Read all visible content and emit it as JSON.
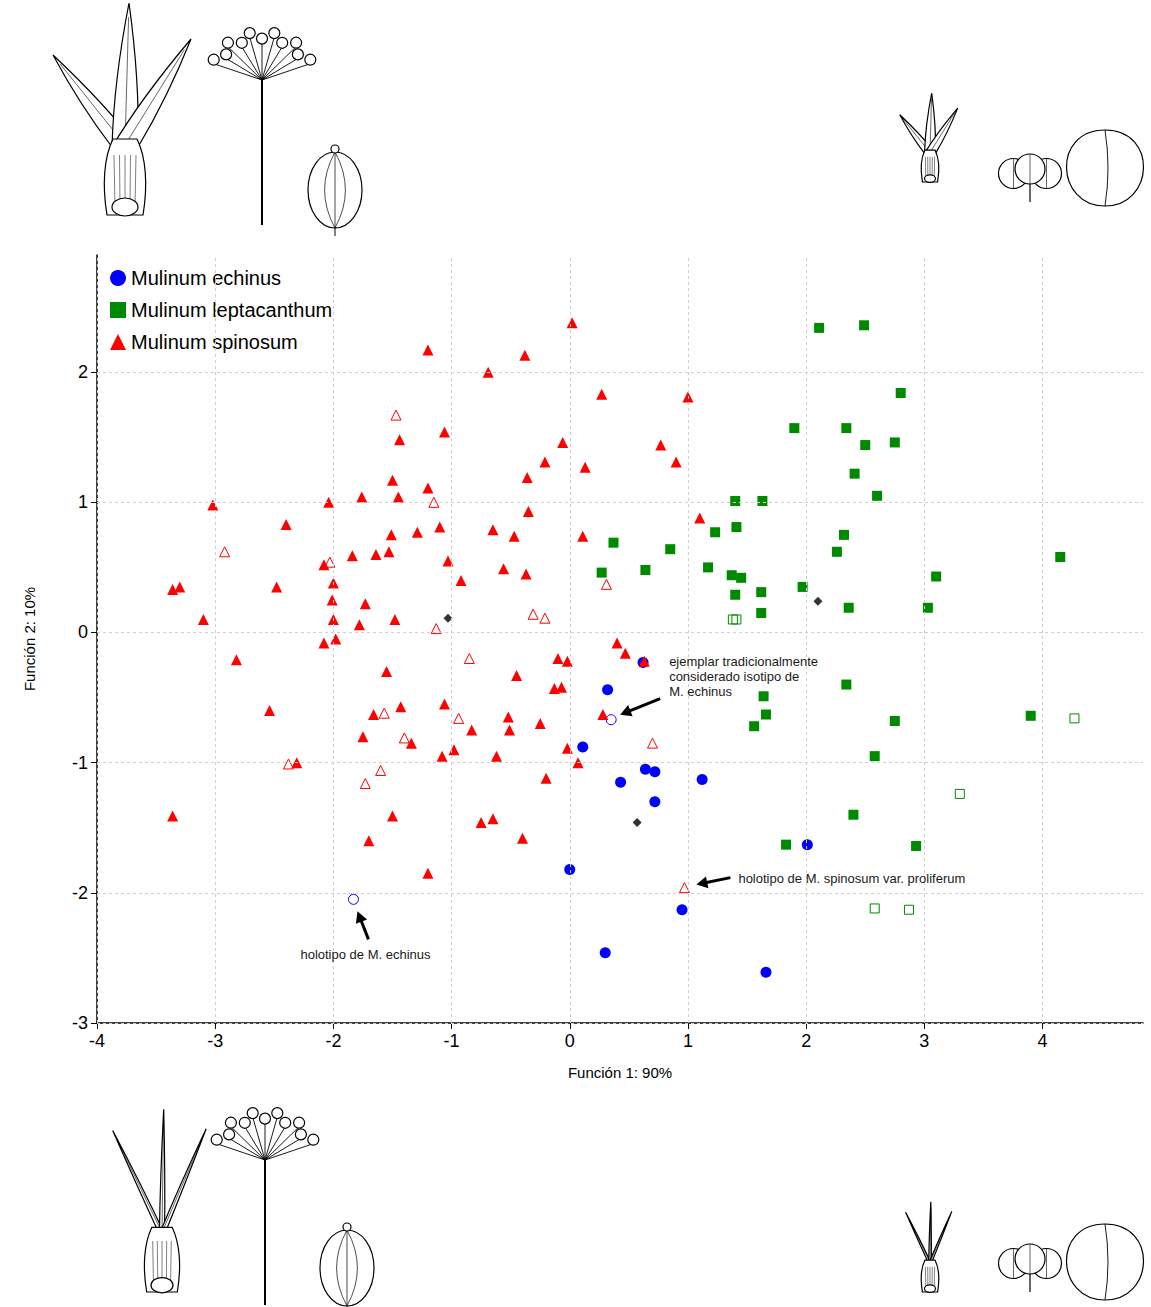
{
  "chart_data": {
    "type": "scatter",
    "x_label": "Función 1: 90%",
    "y_label": "Función 2: 10%",
    "xlim": [
      -4,
      4.85
    ],
    "ylim": [
      -3,
      2.9
    ],
    "xticks": [
      -4,
      -3,
      -2,
      -1,
      0,
      1,
      2,
      3,
      4
    ],
    "yticks": [
      -3,
      -2,
      -1,
      0,
      1,
      2
    ],
    "grid": true,
    "legend": "upper left",
    "series": [
      {
        "name": "Mulinum echinus",
        "color": "#0000ff",
        "marker": "circle",
        "values": [
          [
            0.62,
            -0.23
          ],
          [
            0.32,
            -0.44
          ],
          [
            0.11,
            -0.88
          ],
          [
            0.43,
            -1.15
          ],
          [
            0.64,
            -1.05
          ],
          [
            0.72,
            -1.07
          ],
          [
            0.72,
            -1.3
          ],
          [
            1.12,
            -1.13
          ],
          [
            0.0,
            -1.82
          ],
          [
            0.95,
            -2.13
          ],
          [
            0.3,
            -2.46
          ],
          [
            1.66,
            -2.61
          ],
          [
            2.01,
            -1.63
          ]
        ],
        "open_values": [
          [
            0.35,
            -0.67
          ],
          [
            -1.83,
            -2.05
          ]
        ]
      },
      {
        "name": "Mulinum leptacanthum",
        "color": "#008a00",
        "marker": "square",
        "values": [
          [
            2.11,
            2.34
          ],
          [
            2.49,
            2.36
          ],
          [
            2.8,
            1.84
          ],
          [
            1.9,
            1.57
          ],
          [
            2.34,
            1.57
          ],
          [
            2.5,
            1.44
          ],
          [
            2.75,
            1.46
          ],
          [
            2.41,
            1.22
          ],
          [
            2.6,
            1.05
          ],
          [
            1.4,
            1.01
          ],
          [
            1.63,
            1.01
          ],
          [
            1.41,
            0.81
          ],
          [
            1.23,
            0.77
          ],
          [
            2.32,
            0.75
          ],
          [
            0.85,
            0.64
          ],
          [
            2.26,
            0.62
          ],
          [
            0.37,
            0.69
          ],
          [
            0.64,
            0.48
          ],
          [
            0.27,
            0.46
          ],
          [
            1.17,
            0.5
          ],
          [
            1.37,
            0.44
          ],
          [
            1.45,
            0.42
          ],
          [
            1.4,
            0.29
          ],
          [
            1.62,
            0.31
          ],
          [
            1.97,
            0.35
          ],
          [
            1.62,
            0.15
          ],
          [
            2.36,
            0.19
          ],
          [
            3.03,
            0.19
          ],
          [
            3.1,
            0.43
          ],
          [
            4.15,
            0.58
          ],
          [
            1.64,
            -0.49
          ],
          [
            1.66,
            -0.63
          ],
          [
            1.56,
            -0.72
          ],
          [
            2.34,
            -0.4
          ],
          [
            2.75,
            -0.68
          ],
          [
            3.9,
            -0.64
          ],
          [
            2.58,
            -0.95
          ],
          [
            2.4,
            -1.4
          ],
          [
            1.83,
            -1.63
          ],
          [
            2.93,
            -1.64
          ]
        ],
        "open_values": [
          [
            1.38,
            0.1
          ],
          [
            1.41,
            0.1
          ],
          [
            4.27,
            -0.66
          ],
          [
            3.3,
            -1.24
          ],
          [
            2.58,
            -2.12
          ],
          [
            2.87,
            -2.13
          ]
        ]
      },
      {
        "name": "Mulinum spinosum",
        "color": "#ff0000",
        "marker": "triangle",
        "values": [
          [
            0.02,
            2.38
          ],
          [
            -1.2,
            2.17
          ],
          [
            -0.69,
            2.0
          ],
          [
            -0.38,
            2.13
          ],
          [
            1.0,
            1.81
          ],
          [
            0.27,
            1.83
          ],
          [
            -1.06,
            1.54
          ],
          [
            -0.06,
            1.46
          ],
          [
            0.77,
            1.44
          ],
          [
            -0.21,
            1.31
          ],
          [
            0.9,
            1.31
          ],
          [
            0.13,
            1.27
          ],
          [
            -1.44,
            1.48
          ],
          [
            -1.5,
            1.17
          ],
          [
            -0.36,
            1.19
          ],
          [
            -1.2,
            1.11
          ],
          [
            -3.02,
            0.98
          ],
          [
            -2.04,
            1.0
          ],
          [
            -1.76,
            1.04
          ],
          [
            -1.45,
            1.04
          ],
          [
            -1.1,
            0.81
          ],
          [
            -0.65,
            0.79
          ],
          [
            -0.35,
            0.93
          ],
          [
            1.1,
            0.88
          ],
          [
            -2.4,
            0.83
          ],
          [
            -1.29,
            0.77
          ],
          [
            -0.47,
            0.74
          ],
          [
            0.11,
            0.74
          ],
          [
            -2.08,
            0.52
          ],
          [
            -2.0,
            0.38
          ],
          [
            -1.84,
            0.59
          ],
          [
            -1.64,
            0.6
          ],
          [
            -1.53,
            0.62
          ],
          [
            -1.51,
            0.75
          ],
          [
            -2.01,
            0.25
          ],
          [
            -1.73,
            0.22
          ],
          [
            -1.03,
            0.55
          ],
          [
            -0.92,
            0.4
          ],
          [
            -0.56,
            0.49
          ],
          [
            -0.37,
            0.45
          ],
          [
            -3.36,
            0.33
          ],
          [
            -3.3,
            0.35
          ],
          [
            -2.48,
            0.35
          ],
          [
            -3.1,
            0.1
          ],
          [
            -2.0,
            0.1
          ],
          [
            -1.78,
            0.06
          ],
          [
            -1.48,
            0.1
          ],
          [
            -2.82,
            -0.21
          ],
          [
            -2.08,
            -0.08
          ],
          [
            -1.98,
            -0.05
          ],
          [
            -0.1,
            -0.2
          ],
          [
            -0.02,
            -0.22
          ],
          [
            0.4,
            -0.08
          ],
          [
            0.47,
            -0.16
          ],
          [
            0.63,
            -0.22
          ],
          [
            -1.55,
            -0.3
          ],
          [
            -0.45,
            -0.33
          ],
          [
            -2.54,
            -0.6
          ],
          [
            -1.66,
            -0.63
          ],
          [
            -1.43,
            -0.57
          ],
          [
            -1.06,
            -0.55
          ],
          [
            -0.52,
            -0.65
          ],
          [
            -0.51,
            -0.75
          ],
          [
            -0.13,
            -0.43
          ],
          [
            -1.34,
            -0.85
          ],
          [
            -0.98,
            -0.9
          ],
          [
            -0.83,
            -0.75
          ],
          [
            -0.62,
            -0.95
          ],
          [
            -0.25,
            -0.7
          ],
          [
            -0.07,
            -0.42
          ],
          [
            -0.02,
            -0.89
          ],
          [
            0.07,
            -1.0
          ],
          [
            0.28,
            -0.63
          ],
          [
            -2.31,
            -1.0
          ],
          [
            -1.75,
            -0.8
          ],
          [
            -1.08,
            -0.95
          ],
          [
            -0.2,
            -1.12
          ],
          [
            -0.4,
            -1.58
          ],
          [
            -0.75,
            -1.46
          ],
          [
            -0.65,
            -1.43
          ],
          [
            -1.7,
            -1.6
          ],
          [
            -1.5,
            -1.41
          ],
          [
            -1.2,
            -1.85
          ],
          [
            -3.36,
            -1.41
          ]
        ],
        "open_values": [
          [
            -1.47,
            1.67
          ],
          [
            -1.15,
            1.0
          ],
          [
            -2.92,
            0.62
          ],
          [
            -2.03,
            0.54
          ],
          [
            -1.13,
            0.03
          ],
          [
            -0.31,
            0.14
          ],
          [
            -0.21,
            0.11
          ],
          [
            0.31,
            0.37
          ],
          [
            -0.85,
            -0.2
          ],
          [
            -1.57,
            -0.62
          ],
          [
            -0.94,
            -0.66
          ],
          [
            -1.4,
            -0.81
          ],
          [
            -2.38,
            -1.01
          ],
          [
            -1.6,
            -1.06
          ],
          [
            -1.73,
            -1.16
          ],
          [
            0.7,
            -0.85
          ],
          [
            0.97,
            -1.96
          ]
        ]
      }
    ],
    "extra_points": [
      {
        "color": "#000000",
        "marker": "diamond",
        "values": [
          [
            -1.03,
            0.11
          ],
          [
            2.1,
            0.24
          ],
          [
            0.57,
            -1.46
          ]
        ]
      }
    ],
    "annotations": [
      {
        "text": "ejemplar tradicionalmente considerado isotipo de M. echinus",
        "x": 0.35,
        "y": -0.67
      },
      {
        "text": "holotipo de M. spinosum var. proliferum",
        "x": 0.97,
        "y": -1.96
      },
      {
        "text": "holotipo de M. echinus",
        "x": -1.83,
        "y": -2.05
      }
    ]
  }
}
